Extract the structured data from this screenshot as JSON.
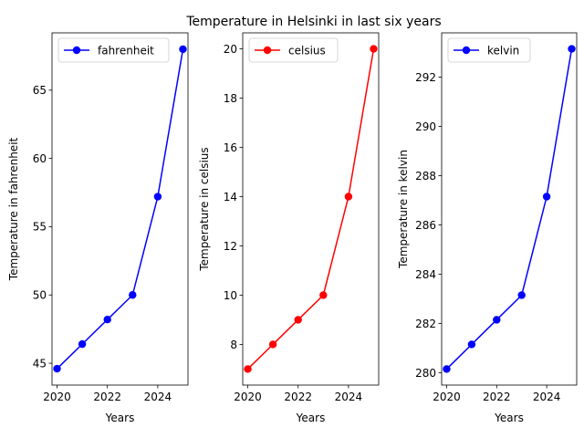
{
  "figure": {
    "title": "Temperature in Helsinki in last six years"
  },
  "chart_data": [
    {
      "type": "line",
      "x": [
        2020,
        2021,
        2022,
        2023,
        2024,
        2025
      ],
      "series": [
        {
          "name": "fahrenheit",
          "values": [
            44.6,
            46.4,
            48.2,
            50.0,
            57.2,
            68.0
          ],
          "color": "#0000ff",
          "marker": "circle"
        }
      ],
      "xlabel": "Years",
      "ylabel": "Temperature in fahrenheit",
      "xlim": [
        2019.8,
        2025.2
      ],
      "ylim": [
        43.4,
        69.2
      ],
      "xticks": [
        "2020",
        "2022",
        "2024"
      ],
      "yticks": [
        "45",
        "50",
        "55",
        "60",
        "65"
      ],
      "legend": "upper-left",
      "grid": false
    },
    {
      "type": "line",
      "x": [
        2020,
        2021,
        2022,
        2023,
        2024,
        2025
      ],
      "series": [
        {
          "name": "celsius",
          "values": [
            7,
            8,
            9,
            10,
            14,
            20
          ],
          "color": "#ff0000",
          "marker": "circle"
        }
      ],
      "xlabel": "Years",
      "ylabel": "Temperature in celsius",
      "xlim": [
        2019.8,
        2025.2
      ],
      "ylim": [
        6.35,
        20.65
      ],
      "xticks": [
        "2020",
        "2022",
        "2024"
      ],
      "yticks": [
        "8",
        "10",
        "12",
        "14",
        "16",
        "18",
        "20"
      ],
      "legend": "upper-left",
      "grid": false
    },
    {
      "type": "line",
      "x": [
        2020,
        2021,
        2022,
        2023,
        2024,
        2025
      ],
      "series": [
        {
          "name": "kelvin",
          "values": [
            280.15,
            281.15,
            282.15,
            283.15,
            287.15,
            293.15
          ],
          "color": "#0000ff",
          "marker": "circle"
        }
      ],
      "xlabel": "Years",
      "ylabel": "Temperature in kelvin",
      "xlim": [
        2019.8,
        2025.2
      ],
      "ylim": [
        279.5,
        293.8
      ],
      "xticks": [
        "2020",
        "2022",
        "2024"
      ],
      "yticks": [
        "280",
        "282",
        "284",
        "286",
        "288",
        "290",
        "292"
      ],
      "legend": "upper-left",
      "grid": false
    }
  ]
}
